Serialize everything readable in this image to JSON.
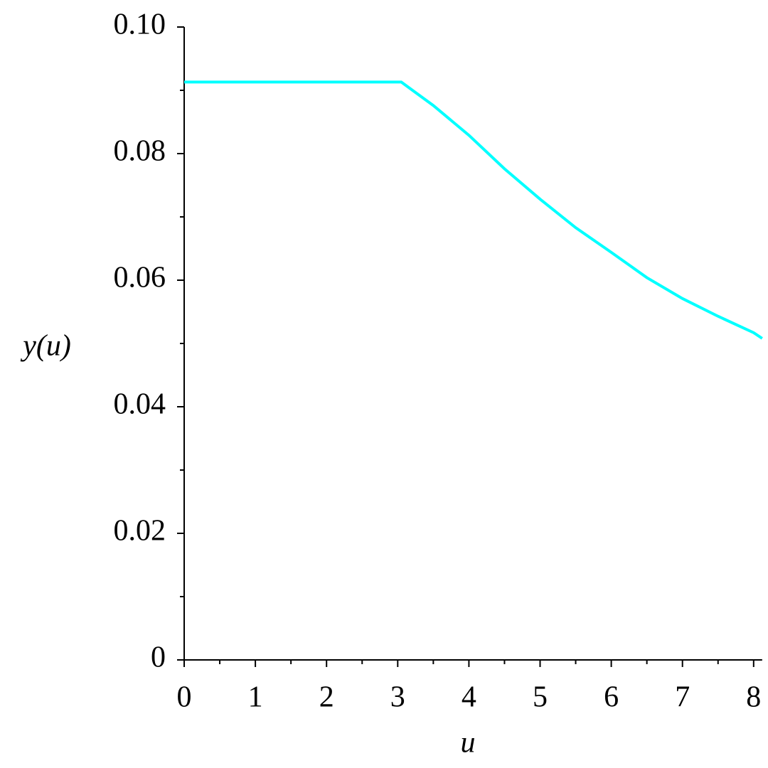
{
  "chart_data": {
    "type": "line",
    "x_label": "u",
    "y_label": "y(u)",
    "series": [
      {
        "color": "#00ffff",
        "x": [
          0,
          3.05,
          3.5,
          4,
          4.5,
          5,
          5.5,
          6,
          6.5,
          7,
          7.5,
          8,
          8.12
        ],
        "values": [
          0.0913,
          0.0913,
          0.0876,
          0.0829,
          0.0776,
          0.0728,
          0.0683,
          0.0644,
          0.0604,
          0.0571,
          0.0543,
          0.0517,
          0.0508
        ]
      }
    ],
    "xlim": [
      0,
      8.12
    ],
    "ylim": [
      0,
      0.1
    ],
    "xticks": [
      0,
      1,
      2,
      3,
      4,
      5,
      6,
      7,
      8
    ],
    "yticks": [
      0,
      0.02,
      0.04,
      0.06,
      0.08,
      {
        "value": 0.1,
        "label": "0.10"
      }
    ],
    "grid": false
  }
}
